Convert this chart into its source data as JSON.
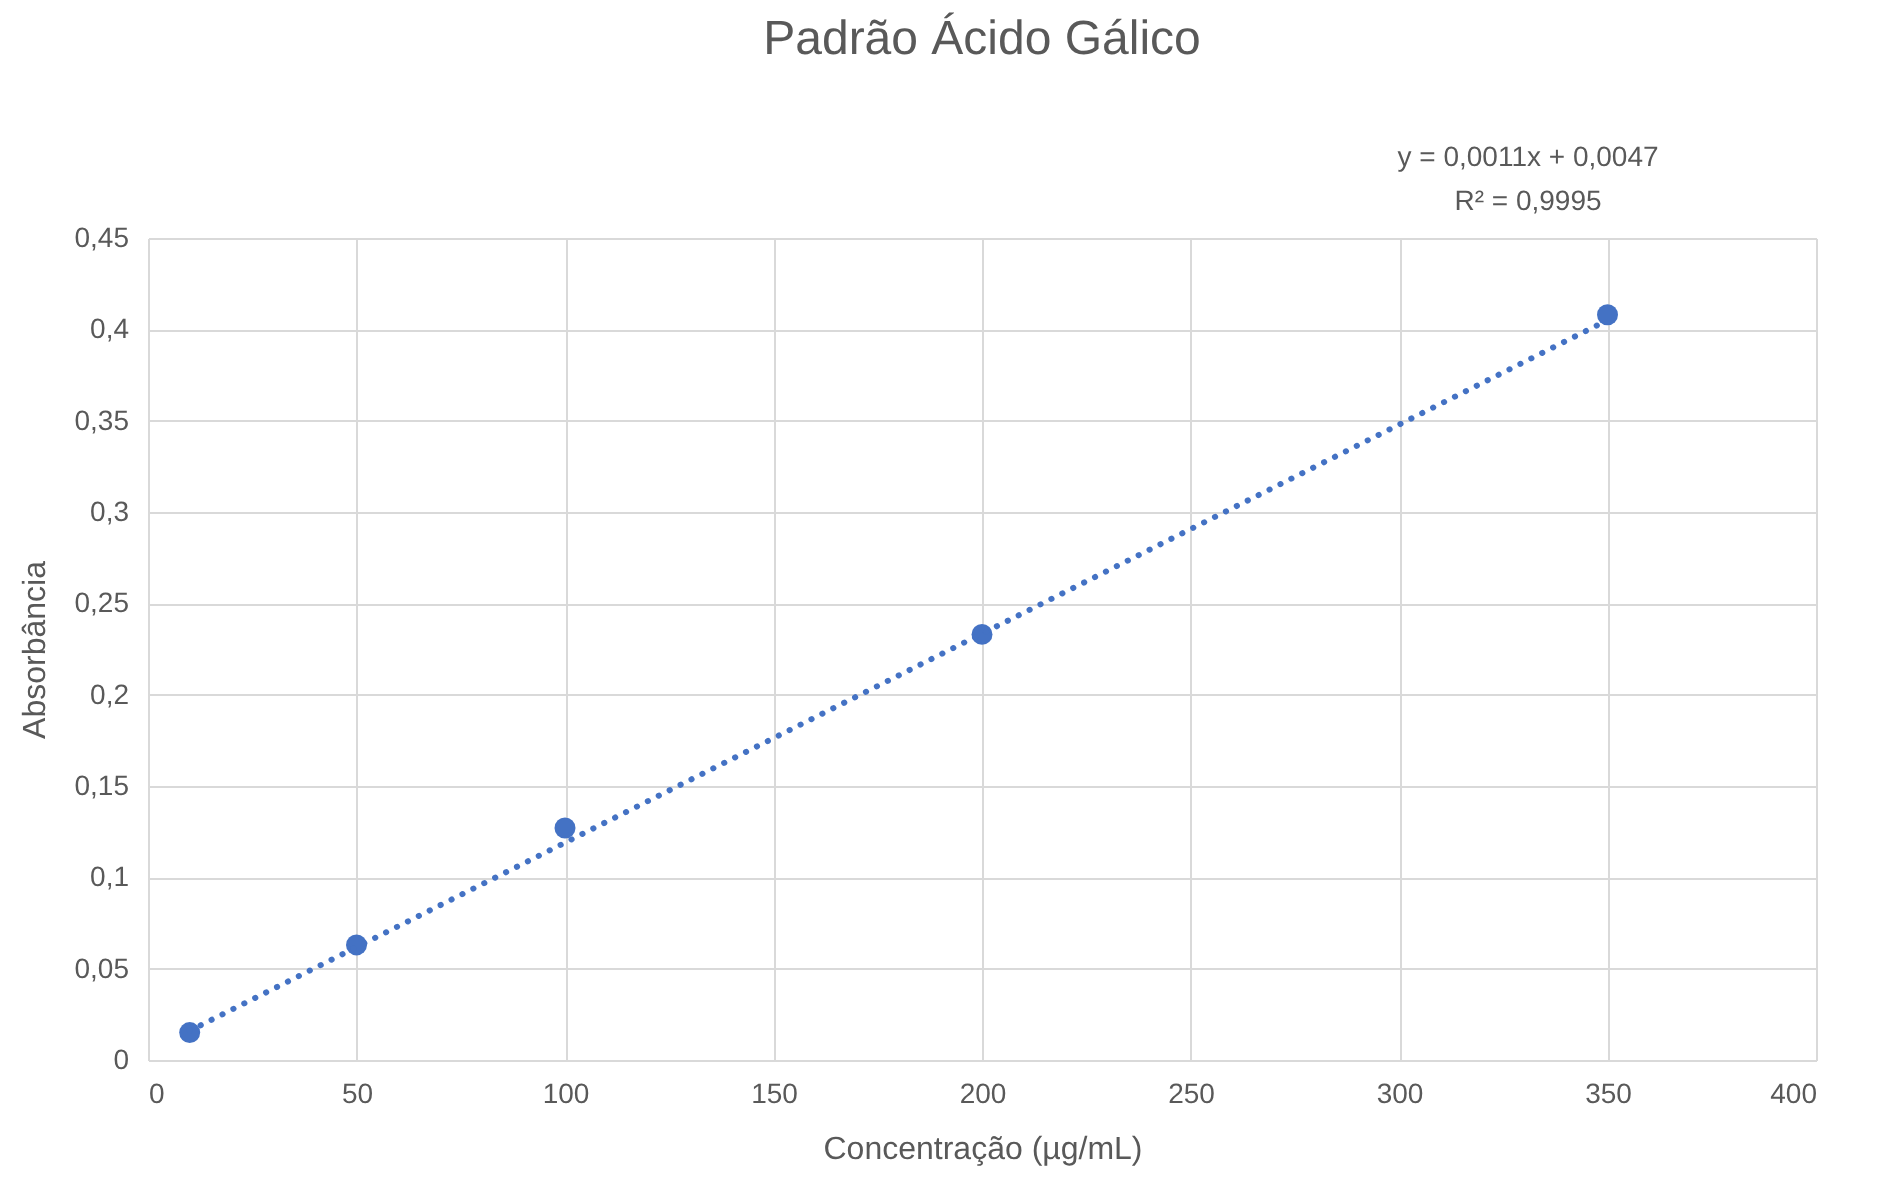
{
  "chart_data": {
    "type": "scatter",
    "title": "Padrão Ácido Gálico",
    "xlabel": "Concentração (µg/mL)",
    "ylabel": "Absorbância",
    "x": [
      10,
      50,
      100,
      200,
      350
    ],
    "series": [
      {
        "color": "#4472c4",
        "values": [
          0.015,
          0.063,
          0.127,
          0.233,
          0.408
        ],
        "marker": "circle"
      },
      {
        "type": "line",
        "color": "#4472c4",
        "x": [
          10,
          350
        ],
        "values": [
          0.016,
          0.405
        ],
        "line_style": "dotted",
        "marker": "none"
      }
    ],
    "xlim": [
      0,
      400
    ],
    "xticks": [
      0,
      50,
      100,
      150,
      200,
      250,
      300,
      350,
      400
    ],
    "ylim": [
      0,
      0.45
    ],
    "yticks": [
      0,
      {
        "value": 0.05,
        "label": "0,05"
      },
      {
        "value": 0.1,
        "label": "0,1"
      },
      {
        "value": 0.15,
        "label": "0,15"
      },
      {
        "value": 0.2,
        "label": "0,2"
      },
      {
        "value": 0.25,
        "label": "0,25"
      },
      {
        "value": 0.3,
        "label": "0,3"
      },
      {
        "value": 0.35,
        "label": "0,35"
      },
      {
        "value": 0.4,
        "label": "0,4"
      },
      {
        "value": 0.45,
        "label": "0,45"
      }
    ],
    "annotations": [
      "y = 0,0011x + 0,0047",
      "R² = 0,9995"
    ],
    "grid": true
  }
}
